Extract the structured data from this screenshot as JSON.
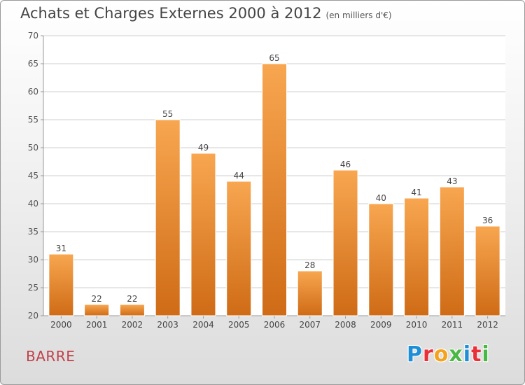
{
  "chart_data": {
    "type": "bar",
    "title": "Achats et Charges Externes 2000 à 2012",
    "subtitle": "(en milliers d'€)",
    "categories": [
      "2000",
      "2001",
      "2002",
      "2003",
      "2004",
      "2005",
      "2006",
      "2007",
      "2008",
      "2009",
      "2010",
      "2011",
      "2012"
    ],
    "values": [
      31,
      22,
      22,
      55,
      49,
      44,
      65,
      28,
      46,
      40,
      41,
      43,
      36
    ],
    "ylim": [
      20,
      70
    ],
    "yticks": [
      20,
      25,
      30,
      35,
      40,
      45,
      50,
      55,
      60,
      65,
      70
    ],
    "grid": true,
    "bar_color": "#f08a2c"
  },
  "commune": "BARRE",
  "logo": {
    "letters": [
      "P",
      "r",
      "o",
      "x",
      "i",
      "t",
      "i"
    ],
    "colors": [
      "#1e8fd6",
      "#e8303a",
      "#f4a320",
      "#49b845",
      "#1e8fd6",
      "#e8303a",
      "#49b845"
    ]
  }
}
